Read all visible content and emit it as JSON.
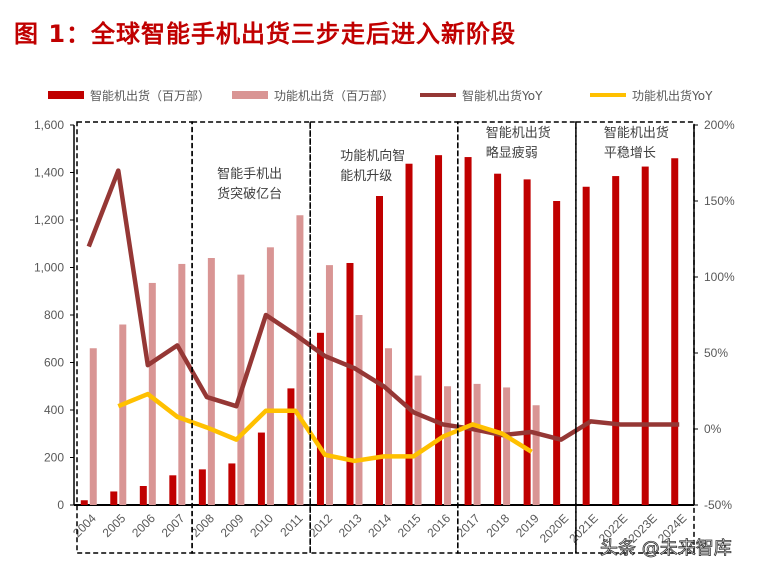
{
  "title": "图 1：全球智能手机出货三步走后进入新阶段",
  "watermark": "头条 @未来智库",
  "chart_data": {
    "type": "bar+line",
    "title": "图 1：全球智能手机出货三步走后进入新阶段",
    "categories": [
      "2004",
      "2005",
      "2006",
      "2007",
      "2008",
      "2009",
      "2010",
      "2011",
      "2012",
      "2013",
      "2014",
      "2015",
      "2016",
      "2017",
      "2018",
      "2019",
      "2020E",
      "2021E",
      "2022E",
      "2023E",
      "2024E"
    ],
    "left_axis": {
      "ylim": [
        0,
        1600
      ],
      "ticks": [
        "0",
        "200",
        "400",
        "600",
        "800",
        "1,000",
        "1,200",
        "1,400",
        "1,600"
      ]
    },
    "right_axis": {
      "ylim": [
        -50,
        200
      ],
      "ticks": [
        "-50%",
        "0%",
        "50%",
        "100%",
        "150%",
        "200%"
      ]
    },
    "legend_position": "top",
    "grid": false,
    "series": [
      {
        "name": "智能机出货（百万部）",
        "type": "bar",
        "axis": "left",
        "color": "#c00000",
        "values": [
          20,
          57,
          80,
          125,
          150,
          175,
          305,
          491,
          725,
          1019,
          1301,
          1437,
          1473,
          1465,
          1395,
          1371,
          1280,
          1340,
          1385,
          1425,
          1460
        ]
      },
      {
        "name": "功能机出货（百万部）",
        "type": "bar",
        "axis": "left",
        "color": "#d99594",
        "values": [
          660,
          760,
          935,
          1015,
          1040,
          970,
          1085,
          1220,
          1010,
          800,
          660,
          545,
          500,
          510,
          495,
          420,
          null,
          null,
          null,
          null,
          null
        ]
      },
      {
        "name": "智能机出货YoY",
        "type": "line",
        "axis": "right",
        "color": "#953735",
        "values": [
          120,
          170,
          42,
          55,
          21,
          15,
          75,
          62,
          48,
          40,
          28,
          11,
          3,
          0,
          -4,
          -2,
          -7,
          5,
          3,
          3,
          3
        ]
      },
      {
        "name": "功能机出货YoY",
        "type": "line",
        "axis": "right",
        "color": "#ffc000",
        "values": [
          null,
          15,
          23,
          8,
          1,
          -7,
          12,
          12,
          -17,
          -21,
          -18,
          -18,
          -5,
          3,
          -3,
          -15,
          null,
          null,
          null,
          null,
          null
        ]
      }
    ],
    "phases": [
      {
        "range": [
          "2004",
          "2007"
        ],
        "label": []
      },
      {
        "range": [
          "2008",
          "2011"
        ],
        "label": [
          "智能手机出",
          "货突破亿台"
        ]
      },
      {
        "range": [
          "2012",
          "2016"
        ],
        "label": [
          "功能机向智",
          "能机升级"
        ]
      },
      {
        "range": [
          "2017",
          "2020E"
        ],
        "label": [
          "智能机出货",
          "略显疲弱"
        ]
      },
      {
        "range": [
          "2021E",
          "2024E"
        ],
        "label": [
          "智能机出货",
          "平稳增长"
        ]
      }
    ]
  }
}
